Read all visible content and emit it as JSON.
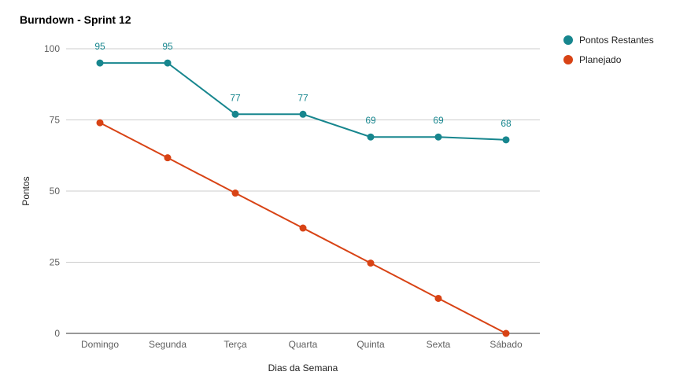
{
  "chart_data": {
    "type": "line",
    "title": "Burndown - Sprint 12",
    "xlabel": "Dias da Semana",
    "ylabel": "Pontos",
    "categories": [
      "Domingo",
      "Segunda",
      "Terça",
      "Quarta",
      "Quinta",
      "Sexta",
      "Sábado"
    ],
    "ylim": [
      0,
      100
    ],
    "yticks": [
      0,
      25,
      50,
      75,
      100
    ],
    "grid": true,
    "legend_position": "top-right",
    "series": [
      {
        "name": "Pontos Restantes",
        "color": "#17868e",
        "values": [
          95,
          95,
          77,
          77,
          69,
          69,
          68
        ],
        "data_labels": true
      },
      {
        "name": "Planejado",
        "color": "#d84315",
        "values": [
          74,
          61.7,
          49.3,
          37,
          24.7,
          12.3,
          0
        ],
        "data_labels": false
      }
    ]
  }
}
